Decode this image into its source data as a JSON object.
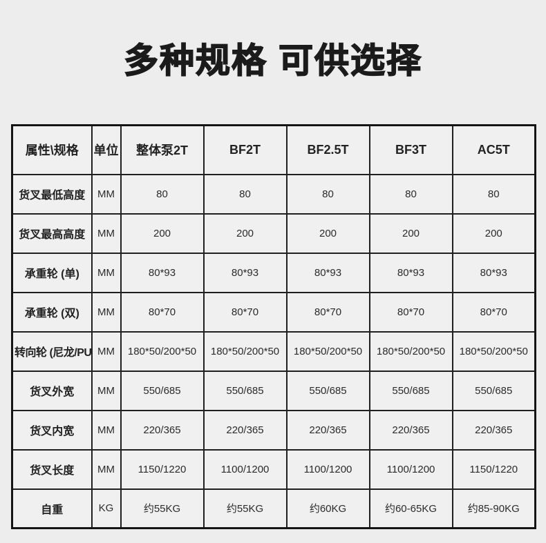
{
  "title": "多种规格 可供选择",
  "table": {
    "columns": [
      "属性\\规格",
      "单位",
      "整体泵2T",
      "BF2T",
      "BF2.5T",
      "BF3T",
      "AC5T"
    ],
    "rows": [
      {
        "label": "货叉最低高度",
        "unit": "MM",
        "values": [
          "80",
          "80",
          "80",
          "80",
          "80"
        ]
      },
      {
        "label": "货叉最高高度",
        "unit": "MM",
        "values": [
          "200",
          "200",
          "200",
          "200",
          "200"
        ]
      },
      {
        "label": "承重轮 (单)",
        "unit": "MM",
        "values": [
          "80*93",
          "80*93",
          "80*93",
          "80*93",
          "80*93"
        ]
      },
      {
        "label": "承重轮 (双)",
        "unit": "MM",
        "values": [
          "80*70",
          "80*70",
          "80*70",
          "80*70",
          "80*70"
        ]
      },
      {
        "label": "转向轮 (尼龙/PU)",
        "unit": "MM",
        "values": [
          "180*50/200*50",
          "180*50/200*50",
          "180*50/200*50",
          "180*50/200*50",
          "180*50/200*50"
        ]
      },
      {
        "label": "货叉外宽",
        "unit": "MM",
        "values": [
          "550/685",
          "550/685",
          "550/685",
          "550/685",
          "550/685"
        ]
      },
      {
        "label": "货叉内宽",
        "unit": "MM",
        "values": [
          "220/365",
          "220/365",
          "220/365",
          "220/365",
          "220/365"
        ]
      },
      {
        "label": "货叉长度",
        "unit": "MM",
        "values": [
          "1150/1220",
          "1100/1200",
          "1100/1200",
          "1100/1200",
          "1150/1220"
        ]
      },
      {
        "label": "自重",
        "unit": "KG",
        "values": [
          "约55KG",
          "约55KG",
          "约60KG",
          "约60-65KG",
          "约85-90KG"
        ]
      }
    ]
  },
  "colors": {
    "page_background": "#ededed",
    "cell_background": "#f0f0f0",
    "border": "#1f1f1f",
    "text": "#262626"
  }
}
